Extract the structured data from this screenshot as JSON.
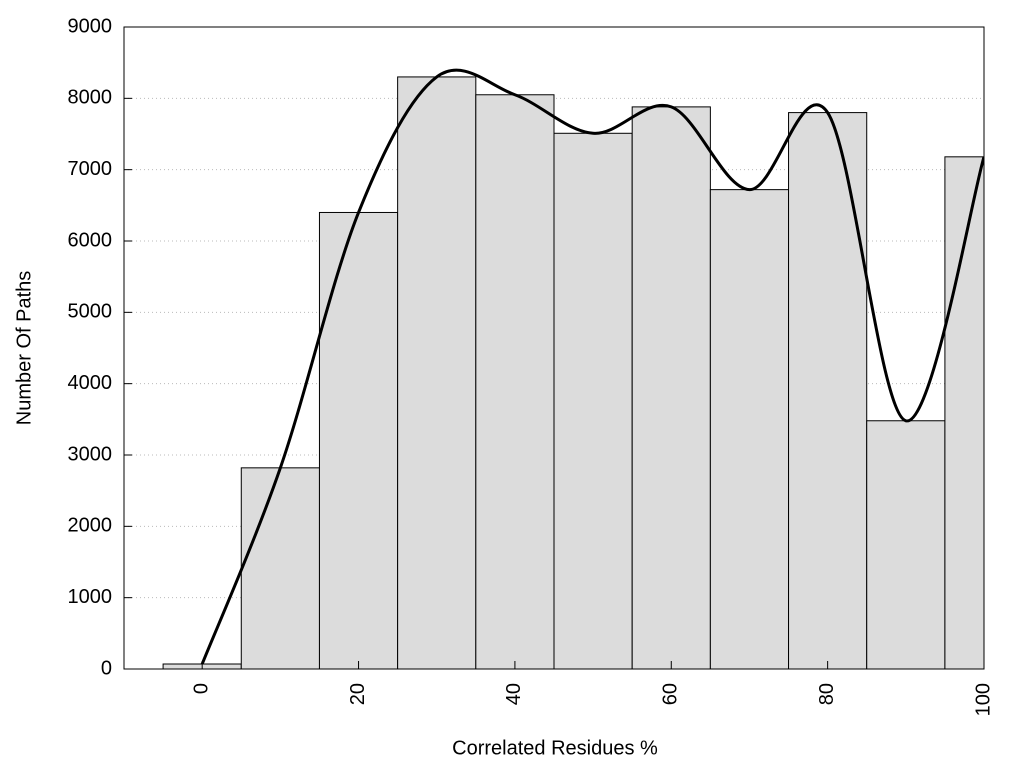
{
  "chart_data": {
    "type": "bar",
    "x_label": "Correlated Residues %",
    "y_label": "Number Of Paths",
    "x": [
      0,
      10,
      20,
      30,
      40,
      50,
      60,
      70,
      80,
      90,
      100
    ],
    "values": [
      70,
      2820,
      6400,
      8300,
      8050,
      7510,
      7880,
      6720,
      7800,
      3480,
      7180
    ],
    "color": "#dcdcdc",
    "smooth_line": true,
    "line_color": "#000000",
    "xlim": [
      -10,
      100
    ],
    "xticks": [
      0,
      20,
      40,
      60,
      80,
      100
    ],
    "ylim": [
      0,
      9000
    ],
    "yticks": [
      0,
      1000,
      2000,
      3000,
      4000,
      5000,
      6000,
      7000,
      8000,
      9000
    ],
    "grid": true
  }
}
